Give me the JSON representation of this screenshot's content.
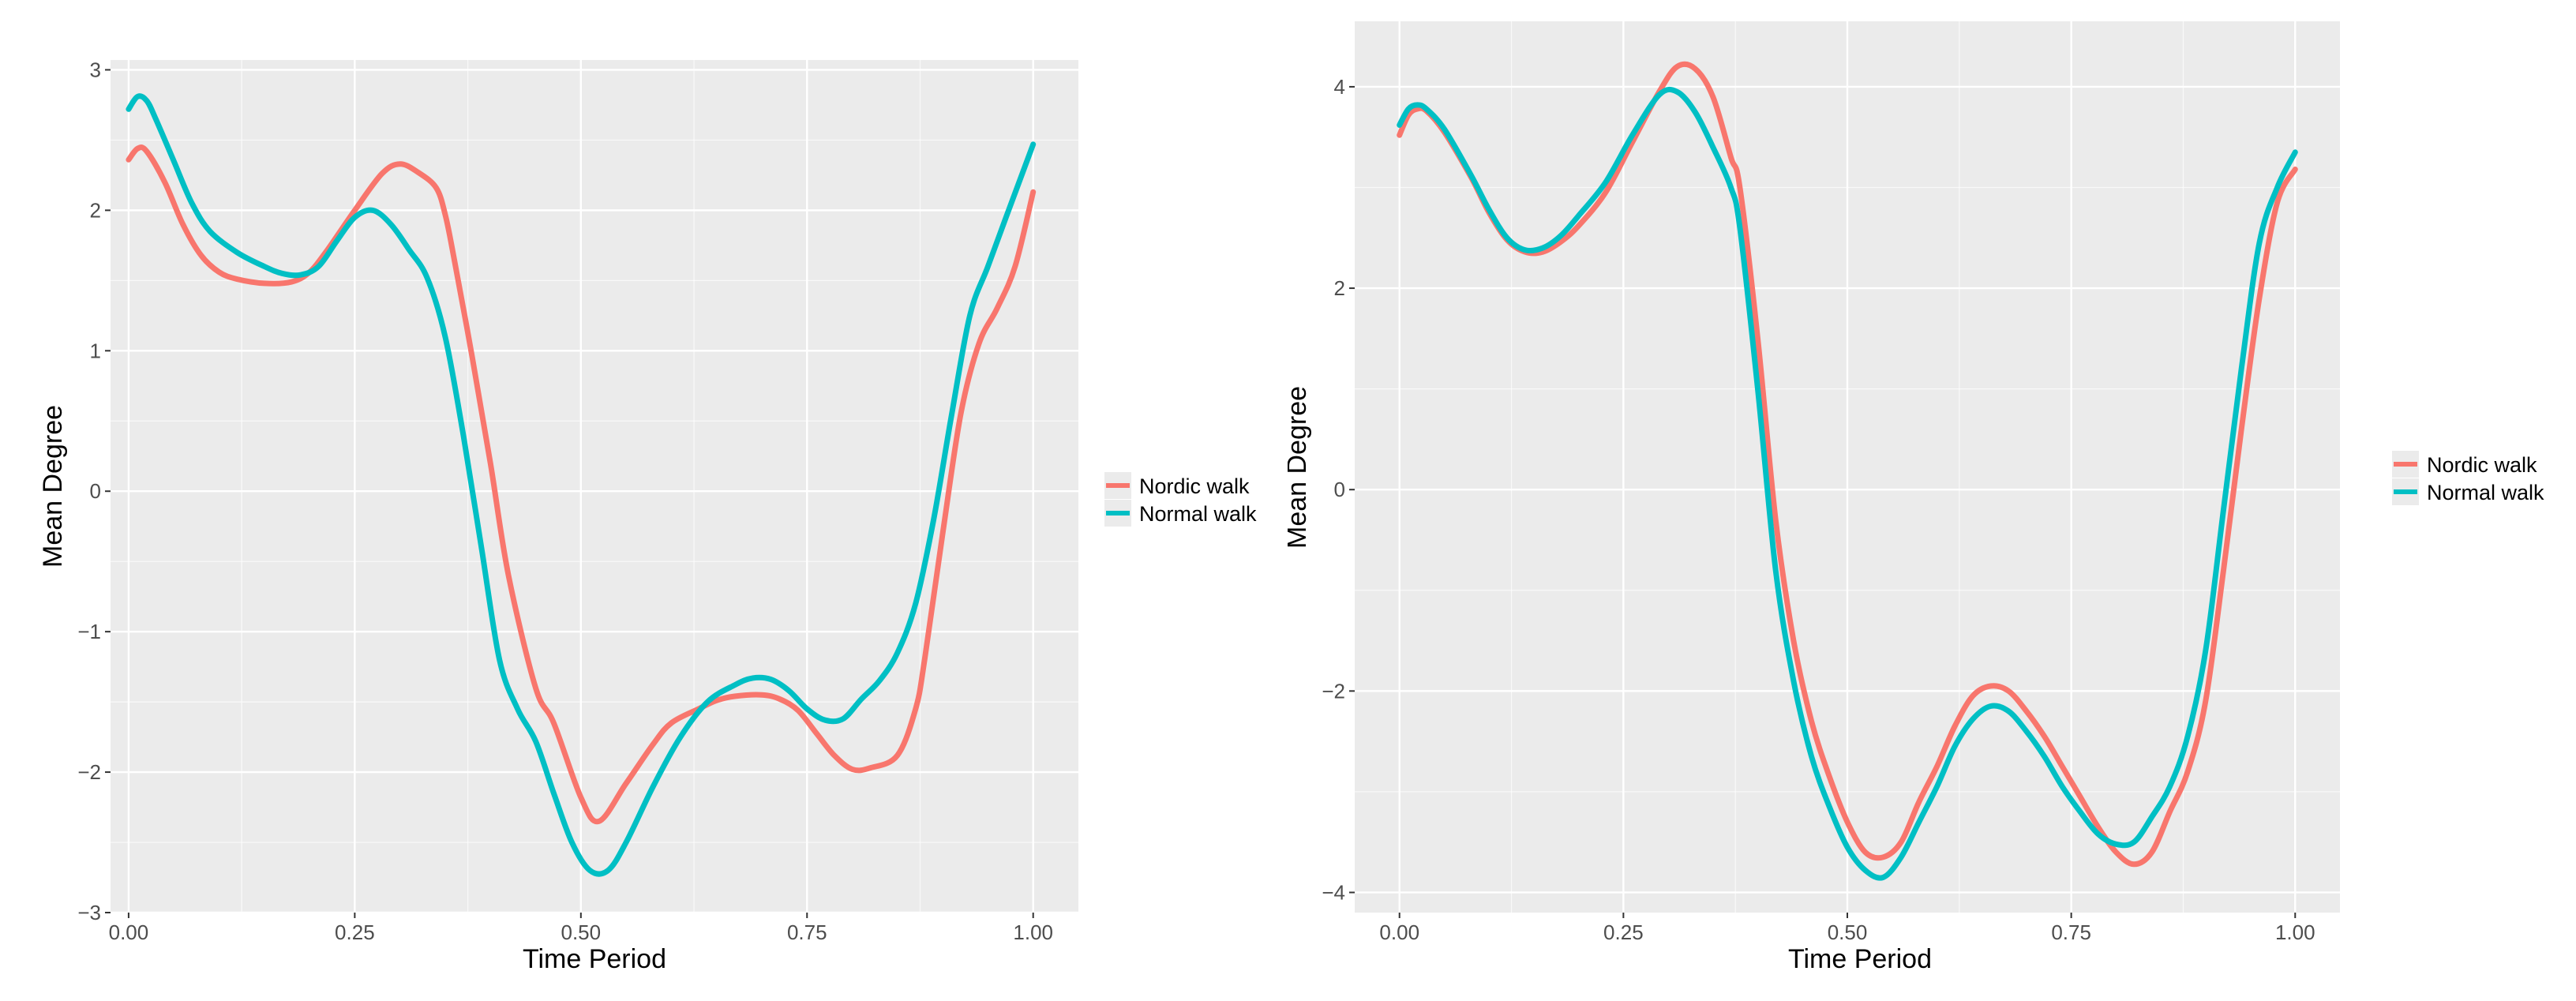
{
  "colors": {
    "nordic": "#F8766D",
    "normal": "#00BFC4",
    "panel_bg": "#EBEBEB",
    "grid": "#FFFFFF"
  },
  "chart_data": [
    {
      "type": "line",
      "xlabel": "Time Period",
      "ylabel": "Mean Degree",
      "xlim": [
        -0.02,
        1.05
      ],
      "ylim": [
        -3.0,
        3.07
      ],
      "x_ticks": [
        0.0,
        0.25,
        0.5,
        0.75,
        1.0
      ],
      "x_tick_labels": [
        "0.00",
        "0.25",
        "0.50",
        "0.75",
        "1.00"
      ],
      "y_ticks": [
        -3,
        -2,
        -1,
        0,
        1,
        2,
        3
      ],
      "y_tick_labels": [
        "−3",
        "−2",
        "−1",
        "0",
        "1",
        "2",
        "3"
      ],
      "grid": true,
      "legend_position": "right",
      "series": [
        {
          "name": "Nordic walk",
          "color": "#F8766D",
          "x": [
            0.0,
            0.01,
            0.02,
            0.04,
            0.06,
            0.08,
            0.1,
            0.12,
            0.15,
            0.18,
            0.2,
            0.22,
            0.25,
            0.28,
            0.3,
            0.32,
            0.34,
            0.35,
            0.36,
            0.38,
            0.4,
            0.42,
            0.45,
            0.47,
            0.5,
            0.52,
            0.55,
            0.58,
            0.6,
            0.63,
            0.65,
            0.67,
            0.7,
            0.72,
            0.74,
            0.76,
            0.78,
            0.8,
            0.82,
            0.85,
            0.87,
            0.88,
            0.9,
            0.92,
            0.94,
            0.96,
            0.98,
            1.0
          ],
          "y": [
            2.36,
            2.44,
            2.42,
            2.2,
            1.9,
            1.68,
            1.56,
            1.51,
            1.48,
            1.49,
            1.56,
            1.72,
            2.0,
            2.26,
            2.33,
            2.27,
            2.16,
            1.97,
            1.65,
            0.95,
            0.2,
            -0.6,
            -1.4,
            -1.65,
            -2.18,
            -2.35,
            -2.08,
            -1.8,
            -1.65,
            -1.55,
            -1.49,
            -1.46,
            -1.45,
            -1.48,
            -1.56,
            -1.72,
            -1.88,
            -1.98,
            -1.97,
            -1.88,
            -1.55,
            -1.2,
            -0.3,
            0.55,
            1.05,
            1.3,
            1.6,
            2.13
          ]
        },
        {
          "name": "Normal walk",
          "color": "#00BFC4",
          "x": [
            0.0,
            0.01,
            0.02,
            0.03,
            0.05,
            0.07,
            0.09,
            0.12,
            0.15,
            0.17,
            0.19,
            0.21,
            0.23,
            0.25,
            0.27,
            0.29,
            0.31,
            0.33,
            0.35,
            0.37,
            0.39,
            0.41,
            0.43,
            0.45,
            0.47,
            0.49,
            0.51,
            0.53,
            0.55,
            0.58,
            0.61,
            0.64,
            0.67,
            0.69,
            0.71,
            0.73,
            0.75,
            0.77,
            0.79,
            0.81,
            0.83,
            0.85,
            0.87,
            0.89,
            0.91,
            0.93,
            0.95,
            0.97,
            1.0
          ],
          "y": [
            2.72,
            2.81,
            2.78,
            2.65,
            2.35,
            2.05,
            1.85,
            1.7,
            1.6,
            1.55,
            1.54,
            1.6,
            1.78,
            1.95,
            2.0,
            1.9,
            1.72,
            1.52,
            1.1,
            0.4,
            -0.4,
            -1.2,
            -1.55,
            -1.78,
            -2.15,
            -2.5,
            -2.7,
            -2.7,
            -2.5,
            -2.1,
            -1.75,
            -1.5,
            -1.38,
            -1.33,
            -1.34,
            -1.42,
            -1.55,
            -1.63,
            -1.62,
            -1.48,
            -1.35,
            -1.15,
            -0.8,
            -0.2,
            0.55,
            1.25,
            1.6,
            1.95,
            2.47
          ]
        }
      ]
    },
    {
      "type": "line",
      "xlabel": "Time Period",
      "ylabel": "Mean Degree",
      "xlim": [
        -0.05,
        1.05
      ],
      "ylim": [
        -4.2,
        4.65
      ],
      "x_ticks": [
        0.0,
        0.25,
        0.5,
        0.75,
        1.0
      ],
      "x_tick_labels": [
        "0.00",
        "0.25",
        "0.50",
        "0.75",
        "1.00"
      ],
      "y_ticks": [
        -4,
        -2,
        0,
        2,
        4
      ],
      "y_tick_labels": [
        "−4",
        "−2",
        "0",
        "2",
        "4"
      ],
      "grid": true,
      "legend_position": "right",
      "series": [
        {
          "name": "Nordic walk",
          "color": "#F8766D",
          "x": [
            0.0,
            0.01,
            0.02,
            0.03,
            0.05,
            0.08,
            0.1,
            0.12,
            0.14,
            0.16,
            0.18,
            0.2,
            0.23,
            0.26,
            0.29,
            0.31,
            0.33,
            0.35,
            0.37,
            0.38,
            0.4,
            0.42,
            0.44,
            0.46,
            0.48,
            0.5,
            0.52,
            0.54,
            0.56,
            0.58,
            0.6,
            0.62,
            0.64,
            0.66,
            0.68,
            0.7,
            0.72,
            0.74,
            0.76,
            0.78,
            0.8,
            0.82,
            0.84,
            0.86,
            0.88,
            0.9,
            0.92,
            0.94,
            0.96,
            0.98,
            1.0
          ],
          "y": [
            3.52,
            3.72,
            3.78,
            3.76,
            3.55,
            3.1,
            2.75,
            2.48,
            2.36,
            2.36,
            2.46,
            2.62,
            2.95,
            3.45,
            3.95,
            4.2,
            4.18,
            3.9,
            3.3,
            3.0,
            1.5,
            -0.3,
            -1.5,
            -2.3,
            -2.85,
            -3.3,
            -3.6,
            -3.65,
            -3.5,
            -3.1,
            -2.75,
            -2.35,
            -2.05,
            -1.95,
            -2.0,
            -2.2,
            -2.45,
            -2.75,
            -3.05,
            -3.35,
            -3.6,
            -3.72,
            -3.6,
            -3.2,
            -2.8,
            -2.1,
            -0.8,
            0.6,
            1.9,
            2.85,
            3.18
          ]
        },
        {
          "name": "Normal walk",
          "color": "#00BFC4",
          "x": [
            0.0,
            0.01,
            0.02,
            0.03,
            0.05,
            0.08,
            0.1,
            0.12,
            0.14,
            0.16,
            0.18,
            0.2,
            0.23,
            0.26,
            0.29,
            0.31,
            0.33,
            0.35,
            0.37,
            0.38,
            0.4,
            0.42,
            0.44,
            0.46,
            0.48,
            0.5,
            0.52,
            0.54,
            0.56,
            0.58,
            0.6,
            0.62,
            0.64,
            0.66,
            0.68,
            0.7,
            0.72,
            0.74,
            0.76,
            0.78,
            0.8,
            0.82,
            0.84,
            0.86,
            0.88,
            0.9,
            0.92,
            0.94,
            0.96,
            0.98,
            1.0
          ],
          "y": [
            3.62,
            3.78,
            3.82,
            3.78,
            3.58,
            3.12,
            2.78,
            2.5,
            2.38,
            2.4,
            2.52,
            2.72,
            3.05,
            3.52,
            3.92,
            3.95,
            3.75,
            3.4,
            3.0,
            2.6,
            1.0,
            -0.8,
            -1.9,
            -2.65,
            -3.15,
            -3.55,
            -3.78,
            -3.85,
            -3.65,
            -3.3,
            -2.95,
            -2.55,
            -2.28,
            -2.15,
            -2.2,
            -2.4,
            -2.65,
            -2.95,
            -3.2,
            -3.42,
            -3.52,
            -3.5,
            -3.25,
            -2.95,
            -2.45,
            -1.6,
            -0.2,
            1.2,
            2.45,
            3.0,
            3.35
          ]
        }
      ]
    }
  ]
}
